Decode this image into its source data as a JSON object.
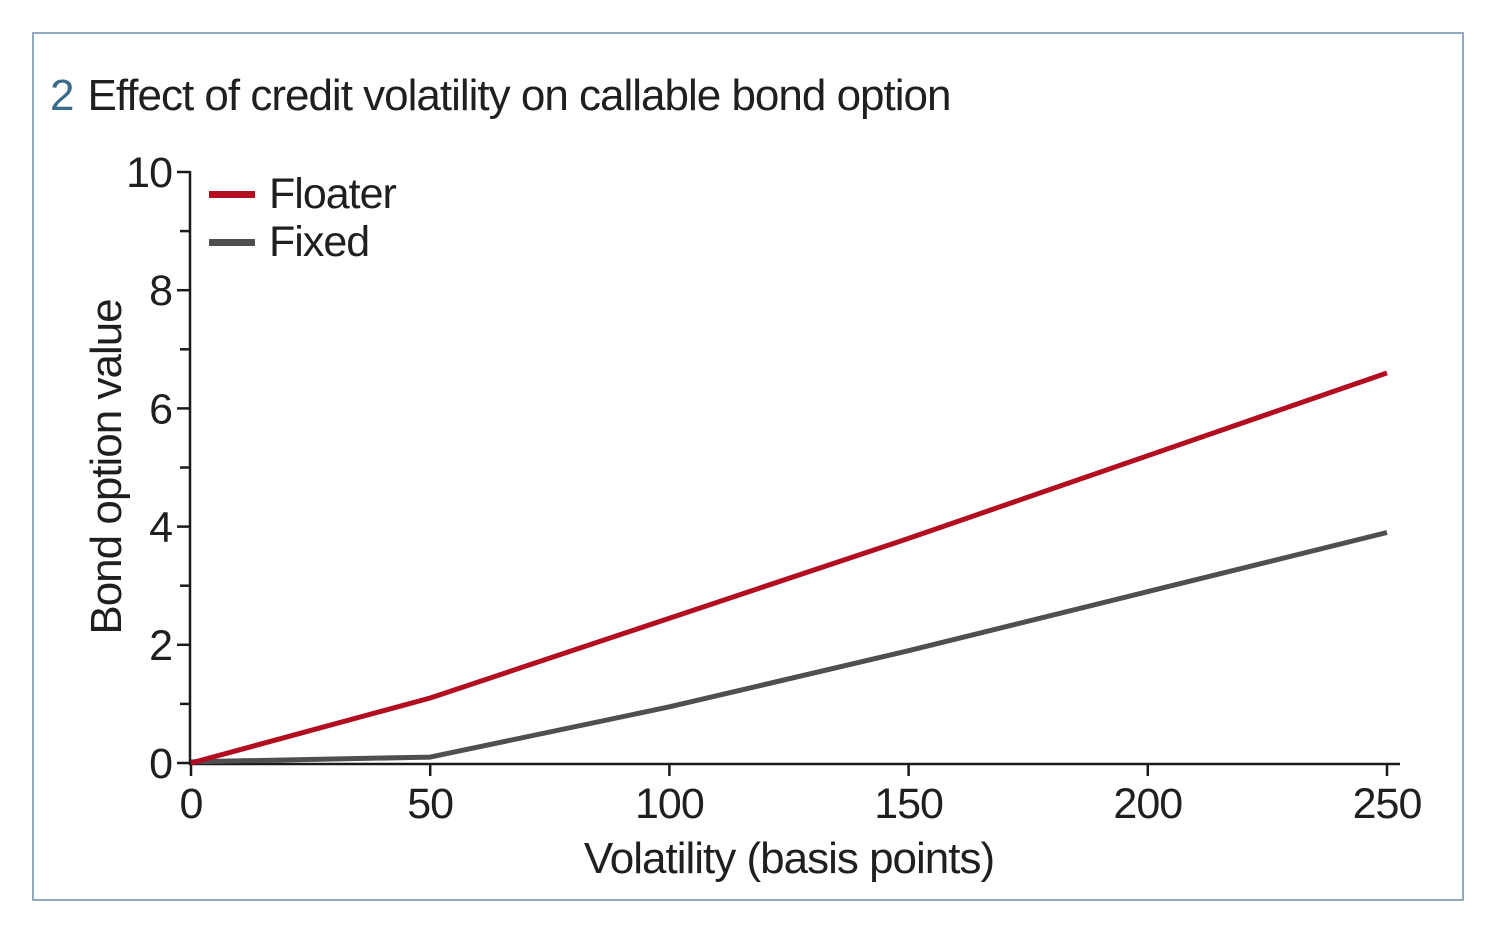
{
  "figure": {
    "number": "2",
    "title": "Effect of credit volatility on callable bond option"
  },
  "chart_data": {
    "type": "line",
    "x": [
      0,
      50,
      100,
      150,
      200,
      250
    ],
    "series": [
      {
        "name": "Floater",
        "color": "#b30d20",
        "values": [
          0,
          1.1,
          2.45,
          3.8,
          5.2,
          6.6
        ]
      },
      {
        "name": "Fixed",
        "color": "#4f4f4f",
        "values": [
          0.02,
          0.1,
          0.95,
          1.9,
          2.9,
          3.9
        ]
      }
    ],
    "xlabel": "Volatility (basis points)",
    "ylabel": "Bond option value",
    "xlim": [
      0,
      250
    ],
    "ylim": [
      0,
      10
    ],
    "x_ticks": [
      0,
      50,
      100,
      150,
      200,
      250
    ],
    "y_ticks_major": [
      0,
      2,
      4,
      6,
      8,
      10
    ],
    "y_ticks_minor": [
      1,
      3,
      5,
      7,
      9
    ],
    "grid": false,
    "legend_position": "top-left"
  },
  "colors": {
    "figure_number": "#3a6b8c",
    "frame_border": "#92abc0",
    "axis": "#1a1a1a",
    "text": "#1f1f1f"
  }
}
